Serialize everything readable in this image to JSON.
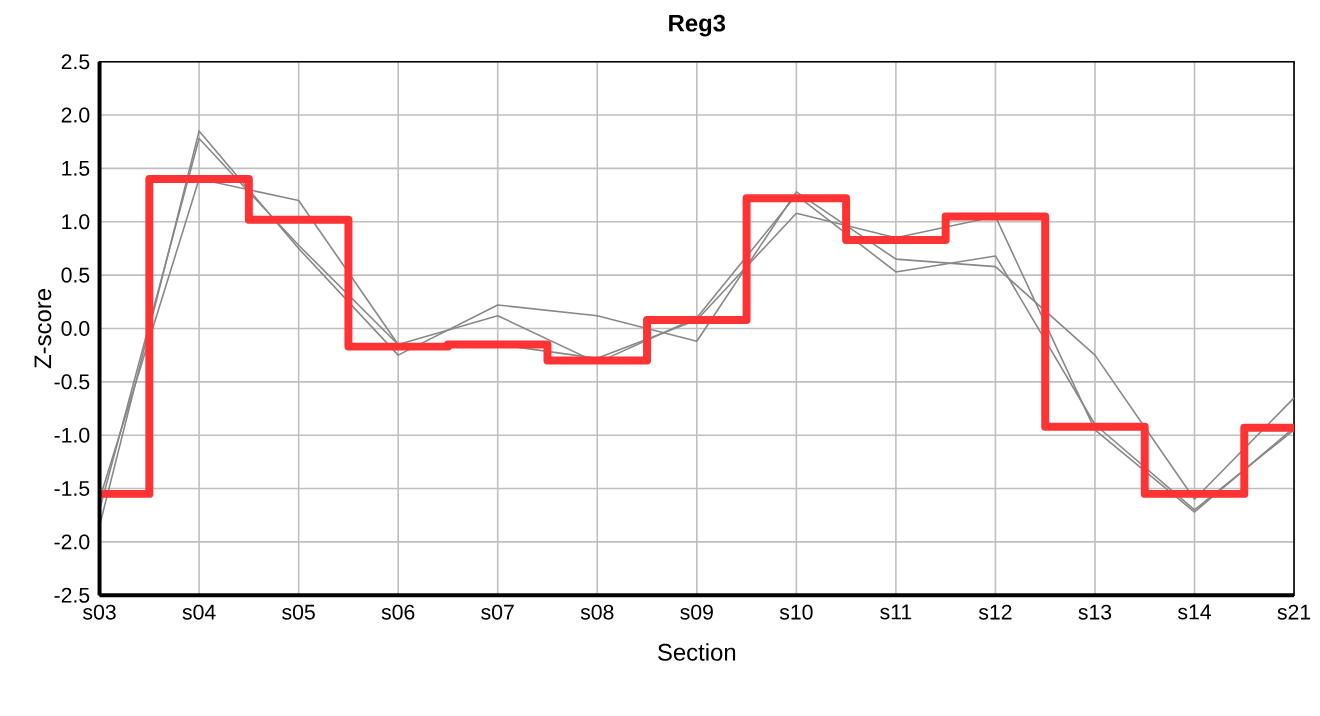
{
  "chart_data": {
    "type": "line",
    "title": "Reg3",
    "xlabel": "Section",
    "ylabel": "Z-score",
    "categories": [
      "s03",
      "s04",
      "s05",
      "s06",
      "s07",
      "s08",
      "s09",
      "s10",
      "s11",
      "s12",
      "s13",
      "s14",
      "s21"
    ],
    "series": [
      {
        "color": "#888888",
        "values": [
          -1.85,
          1.85,
          0.75,
          -0.25,
          0.22,
          0.12,
          -0.12,
          1.28,
          0.65,
          0.58,
          -0.25,
          -1.6,
          -0.65
        ]
      },
      {
        "color": "#888888",
        "values": [
          -1.7,
          1.78,
          0.78,
          -0.15,
          0.12,
          -0.32,
          0.1,
          1.25,
          0.53,
          0.68,
          -0.9,
          -1.7,
          -0.95
        ]
      },
      {
        "color": "#888888",
        "values": [
          -1.6,
          1.4,
          1.2,
          -0.15,
          -0.15,
          -0.28,
          0.08,
          1.08,
          0.85,
          1.05,
          -0.95,
          -1.72,
          -0.93
        ]
      },
      {
        "type": "step",
        "color": "#ff3333",
        "values": [
          -1.55,
          1.4,
          1.02,
          -0.17,
          -0.15,
          -0.3,
          0.08,
          1.22,
          0.83,
          1.05,
          -0.92,
          -1.55,
          -0.93
        ]
      }
    ],
    "ylim": [
      -2.5,
      2.5
    ],
    "yticks": [
      {
        "value": -2.5,
        "label": "-2.5"
      },
      {
        "value": -2,
        "label": "-2.0"
      },
      {
        "value": -1.5,
        "label": "-1.5"
      },
      {
        "value": -1,
        "label": "-1.0"
      },
      {
        "value": -0.5,
        "label": "-0.5"
      },
      {
        "value": 0,
        "label": "0.0"
      },
      {
        "value": 0.5,
        "label": "0.5"
      },
      {
        "value": 1,
        "label": "1.0"
      },
      {
        "value": 1.5,
        "label": "1.5"
      },
      {
        "value": 2,
        "label": "2.0"
      },
      {
        "value": 2.5,
        "label": "2.5"
      }
    ],
    "grid": true
  }
}
